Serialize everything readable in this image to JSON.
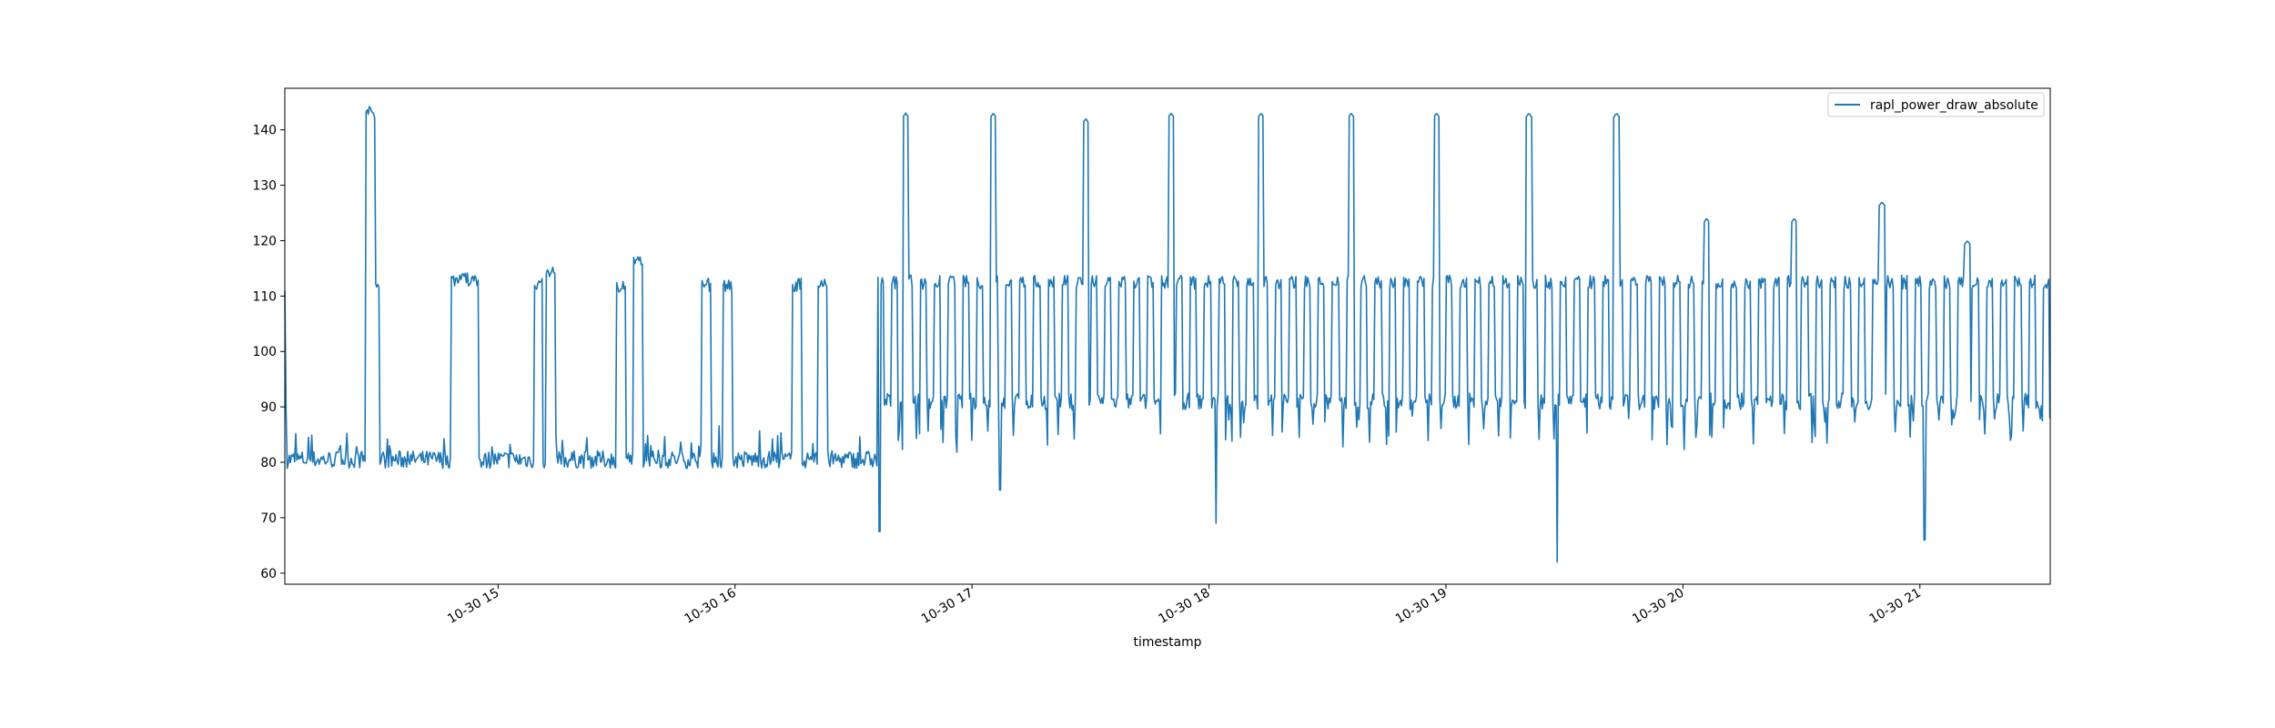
{
  "chart_data": {
    "type": "line",
    "title": "",
    "xlabel": "timestamp",
    "ylabel": "",
    "x_ticks": [
      "10-30 15",
      "10-30 16",
      "10-30 17",
      "10-30 18",
      "10-30 19",
      "10-30 20",
      "10-30 21"
    ],
    "y_ticks": [
      60,
      70,
      80,
      90,
      100,
      110,
      120,
      130,
      140
    ],
    "xlim_hours": [
      14.1,
      21.55
    ],
    "ylim": [
      58,
      147.5
    ],
    "grid": false,
    "legend_position": "top-right",
    "series": [
      {
        "name": "rapl_power_draw_absolute",
        "color": "#1f77b4",
        "baseline_phase": {
          "start_hour": 14.1,
          "end_hour": 16.6,
          "base": 80.5,
          "bursts": [
            {
              "start": 14.44,
              "end": 14.48,
              "level": 143
            },
            {
              "start": 14.48,
              "end": 14.5,
              "level": 112
            },
            {
              "start": 14.8,
              "end": 14.92,
              "level": 113
            },
            {
              "start": 15.15,
              "end": 15.19,
              "level": 112
            },
            {
              "start": 15.2,
              "end": 15.24,
              "level": 114
            },
            {
              "start": 15.5,
              "end": 15.54,
              "level": 112
            },
            {
              "start": 15.57,
              "end": 15.61,
              "level": 116
            },
            {
              "start": 15.86,
              "end": 15.9,
              "level": 112
            },
            {
              "start": 15.95,
              "end": 15.99,
              "level": 112
            },
            {
              "start": 16.24,
              "end": 16.28,
              "level": 112
            },
            {
              "start": 16.35,
              "end": 16.39,
              "level": 112
            }
          ]
        },
        "active_phase": {
          "start_hour": 16.6,
          "end_hour": 21.55,
          "base": 91,
          "high": 112.5,
          "burst_period_hours": 0.06,
          "burst_width_hours": 0.028
        },
        "spikes": [
          {
            "x": 16.72,
            "y": 143
          },
          {
            "x": 17.09,
            "y": 143
          },
          {
            "x": 17.48,
            "y": 142
          },
          {
            "x": 17.84,
            "y": 143
          },
          {
            "x": 18.22,
            "y": 143
          },
          {
            "x": 18.6,
            "y": 143
          },
          {
            "x": 18.96,
            "y": 143
          },
          {
            "x": 19.35,
            "y": 143
          },
          {
            "x": 19.72,
            "y": 143
          },
          {
            "x": 20.1,
            "y": 124
          },
          {
            "x": 20.47,
            "y": 124
          },
          {
            "x": 20.84,
            "y": 127
          },
          {
            "x": 21.2,
            "y": 120
          }
        ],
        "dips": [
          {
            "x": 16.61,
            "y": 67.5
          },
          {
            "x": 17.12,
            "y": 75
          },
          {
            "x": 18.03,
            "y": 69
          },
          {
            "x": 19.47,
            "y": 62
          },
          {
            "x": 21.02,
            "y": 66
          }
        ]
      }
    ]
  }
}
